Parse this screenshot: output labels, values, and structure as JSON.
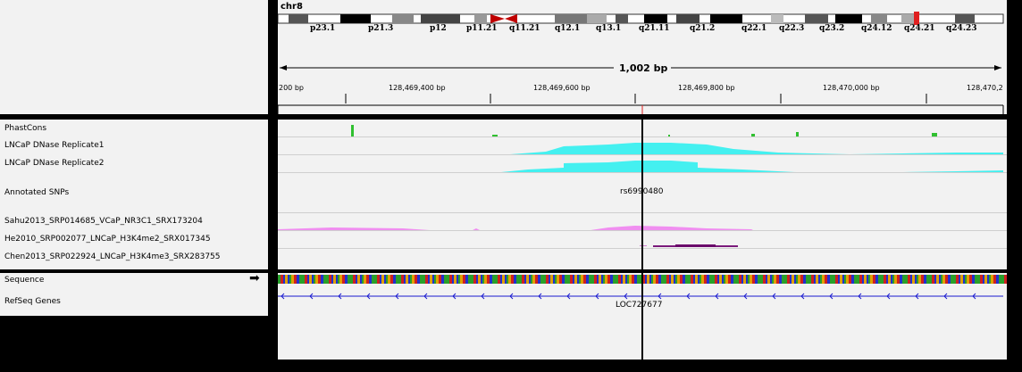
{
  "chromosome": "chr8",
  "cytobands": [
    "p23.1",
    "p21.3",
    "p12",
    "p11.21",
    "q11.21",
    "q12.1",
    "q13.1",
    "q21.11",
    "q21.2",
    "q22.1",
    "q22.3",
    "q23.2",
    "q24.12",
    "q24.21",
    "q24.23"
  ],
  "ruler": {
    "span_label": "1,002 bp",
    "ticks": [
      "200 bp",
      "128,469,400 bp",
      "128,469,600 bp",
      "128,469,800 bp",
      "128,470,000 bp",
      "128,470,2"
    ]
  },
  "tracks": {
    "phastcons": "PhastCons",
    "dnase1": "LNCaP DNase Replicate1",
    "dnase2": "LNCaP DNase Replicate2",
    "snps": "Annotated SNPs",
    "sahu": "Sahu2013_SRP014685_VCaP_NR3C1_SRX173204",
    "he": "He2010_SRP002077_LNCaP_H3K4me2_SRX017345",
    "chen": "Chen2013_SRP022924_LNCaP_H3K4me3_SRX283755",
    "sequence": "Sequence",
    "refseq": "RefSeq Genes"
  },
  "features": {
    "snp_id": "rs6990480",
    "gene": "LOC727677"
  },
  "colors": {
    "dnase": "#44f0f0",
    "conservation": "#30c030",
    "sahu": "#f08ef0",
    "chen": "#7a1a7a",
    "refseq": "#1a1ad0",
    "centromere": "#c00000",
    "cursor": "#000000"
  }
}
